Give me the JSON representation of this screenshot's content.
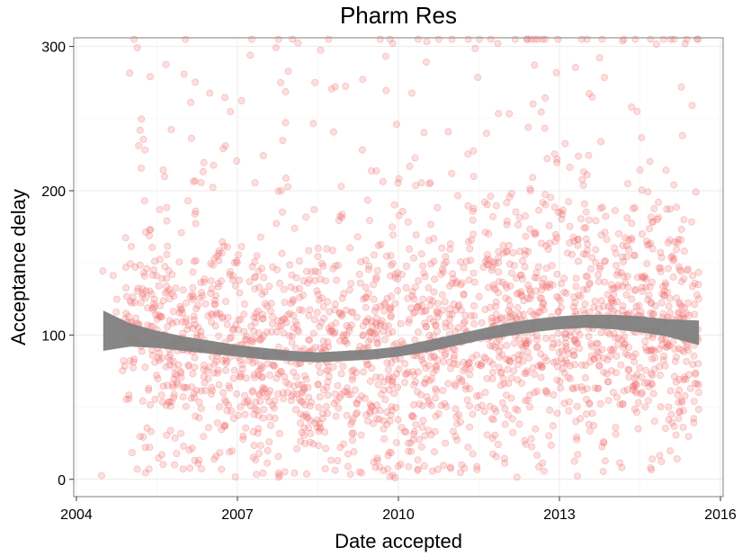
{
  "chart_data": {
    "type": "scatter",
    "title": "Pharm Res",
    "xlabel": "Date accepted",
    "ylabel": "Acceptance delay",
    "xlim": [
      2003.95,
      2016.05
    ],
    "ylim": [
      -12,
      306
    ],
    "x_ticks": [
      2004,
      2007,
      2010,
      2013,
      2016
    ],
    "y_ticks": [
      0,
      100,
      200,
      300
    ],
    "grid": true,
    "point_color": "#f26b6b",
    "point_opacity": 0.22,
    "smooth_color": "#7f7f7f",
    "x_range_of_points": [
      2004.45,
      2015.6
    ],
    "smooth_band": [
      {
        "x": 2004.5,
        "lo": 89,
        "hi": 117
      },
      {
        "x": 2005.0,
        "lo": 92,
        "hi": 108
      },
      {
        "x": 2005.5,
        "lo": 91,
        "hi": 103
      },
      {
        "x": 2006.0,
        "lo": 89,
        "hi": 99
      },
      {
        "x": 2006.5,
        "lo": 87,
        "hi": 96
      },
      {
        "x": 2007.0,
        "lo": 85,
        "hi": 93
      },
      {
        "x": 2007.5,
        "lo": 83,
        "hi": 91
      },
      {
        "x": 2008.0,
        "lo": 82,
        "hi": 89
      },
      {
        "x": 2008.5,
        "lo": 81,
        "hi": 88
      },
      {
        "x": 2009.0,
        "lo": 82,
        "hi": 89
      },
      {
        "x": 2009.5,
        "lo": 83,
        "hi": 90
      },
      {
        "x": 2010.0,
        "lo": 85,
        "hi": 92
      },
      {
        "x": 2010.5,
        "lo": 88,
        "hi": 96
      },
      {
        "x": 2011.0,
        "lo": 92,
        "hi": 100
      },
      {
        "x": 2011.5,
        "lo": 96,
        "hi": 104
      },
      {
        "x": 2012.0,
        "lo": 99,
        "hi": 108
      },
      {
        "x": 2012.5,
        "lo": 102,
        "hi": 111
      },
      {
        "x": 2013.0,
        "lo": 104,
        "hi": 113
      },
      {
        "x": 2013.5,
        "lo": 105,
        "hi": 114
      },
      {
        "x": 2014.0,
        "lo": 104,
        "hi": 114
      },
      {
        "x": 2014.5,
        "lo": 102,
        "hi": 113
      },
      {
        "x": 2015.0,
        "lo": 99,
        "hi": 111
      },
      {
        "x": 2015.6,
        "lo": 93,
        "hi": 110
      }
    ]
  }
}
